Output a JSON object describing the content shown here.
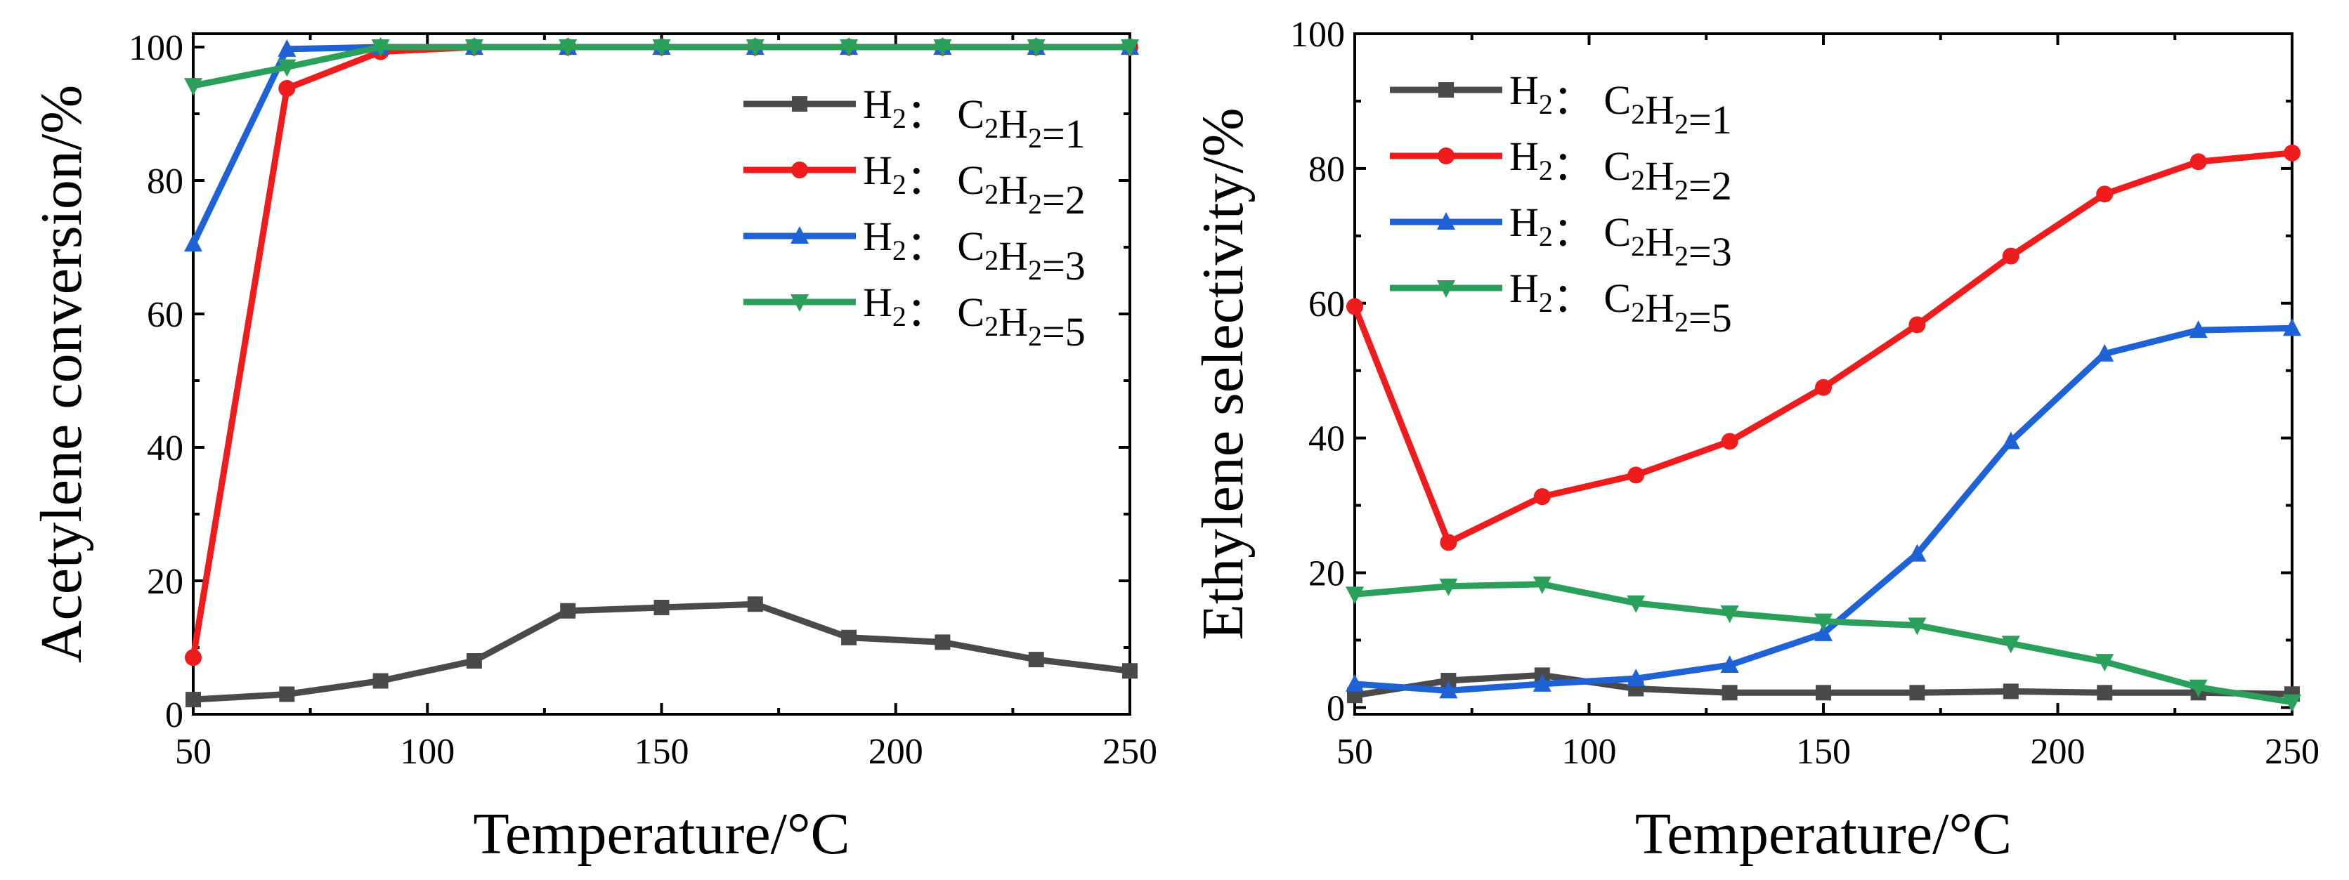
{
  "chart_data": [
    {
      "type": "line",
      "title": "",
      "xlabel": "Temperature/°C",
      "ylabel": "Acetylene conversion/%",
      "xlim": [
        50,
        250
      ],
      "ylim": [
        0,
        102
      ],
      "xticks": [
        50,
        100,
        150,
        200,
        250
      ],
      "yticks": [
        0,
        20,
        40,
        60,
        80,
        100
      ],
      "grid": false,
      "legend_position": "top-right",
      "x": [
        50,
        70,
        90,
        110,
        130,
        150,
        170,
        190,
        210,
        230,
        250
      ],
      "series": [
        {
          "name": "H2：C2H2=1",
          "label_parts": {
            "a": "H",
            "a_sub": "2",
            "sep": "：  ",
            "b": "C",
            "b_sub": "2",
            "c": "H",
            "c_sub": "2",
            "tail": "=1"
          },
          "color": "#4a4a4a",
          "marker": "square",
          "values": [
            2.2,
            3.0,
            5.0,
            8.0,
            15.5,
            16.0,
            16.5,
            11.5,
            10.8,
            8.2,
            6.5
          ]
        },
        {
          "name": "H2：C2H2=2",
          "label_parts": {
            "a": "H",
            "a_sub": "2",
            "sep": "：  ",
            "b": "C",
            "b_sub": "2",
            "c": "H",
            "c_sub": "2",
            "tail": "=2"
          },
          "color": "#ee1c1c",
          "marker": "circle",
          "values": [
            8.5,
            93.8,
            99.3,
            100,
            100,
            100,
            100,
            100,
            100,
            100,
            100
          ]
        },
        {
          "name": "H2：C2H2=3",
          "label_parts": {
            "a": "H",
            "a_sub": "2",
            "sep": "：  ",
            "b": "C",
            "b_sub": "2",
            "c": "H",
            "c_sub": "2",
            "tail": "=3"
          },
          "color": "#1f62d6",
          "marker": "triangle-up",
          "values": [
            70.5,
            99.7,
            100,
            100,
            100,
            100,
            100,
            100,
            100,
            100,
            100
          ]
        },
        {
          "name": "H2：C2H2=5",
          "label_parts": {
            "a": "H",
            "a_sub": "2",
            "sep": "：  ",
            "b": "C",
            "b_sub": "2",
            "c": "H",
            "c_sub": "2",
            "tail": "=5"
          },
          "color": "#2aa05a",
          "marker": "triangle-down",
          "values": [
            94.2,
            97.0,
            100,
            100,
            100,
            100,
            100,
            100,
            100,
            100,
            100
          ]
        }
      ]
    },
    {
      "type": "line",
      "title": "",
      "xlabel": "Temperature/°C",
      "ylabel": "Ethylene selectivity/%",
      "xlim": [
        50,
        250
      ],
      "ylim": [
        -1,
        100
      ],
      "xticks": [
        50,
        100,
        150,
        200,
        250
      ],
      "yticks": [
        0,
        20,
        40,
        60,
        80,
        100
      ],
      "grid": false,
      "legend_position": "top-left",
      "x": [
        50,
        70,
        90,
        110,
        130,
        150,
        170,
        190,
        210,
        230,
        250
      ],
      "series": [
        {
          "name": "H2：C2H2=1",
          "label_parts": {
            "a": "H",
            "a_sub": "2",
            "sep": "：  ",
            "b": "C",
            "b_sub": "2",
            "c": "H",
            "c_sub": "2",
            "tail": "=1"
          },
          "color": "#4a4a4a",
          "marker": "square",
          "values": [
            1.8,
            4.0,
            4.8,
            2.8,
            2.2,
            2.2,
            2.2,
            2.4,
            2.2,
            2.2,
            2.0
          ]
        },
        {
          "name": "H2：C2H2=2",
          "label_parts": {
            "a": "H",
            "a_sub": "2",
            "sep": "：  ",
            "b": "C",
            "b_sub": "2",
            "c": "H",
            "c_sub": "2",
            "tail": "=2"
          },
          "color": "#ee1c1c",
          "marker": "circle",
          "values": [
            59.5,
            24.5,
            31.3,
            34.5,
            39.5,
            47.5,
            56.8,
            67.0,
            76.2,
            81.0,
            82.3
          ]
        },
        {
          "name": "H2：C2H2=3",
          "label_parts": {
            "a": "H",
            "a_sub": "2",
            "sep": "：  ",
            "b": "C",
            "b_sub": "2",
            "c": "H",
            "c_sub": "2",
            "tail": "=3"
          },
          "color": "#1f62d6",
          "marker": "triangle-up",
          "values": [
            3.5,
            2.5,
            3.5,
            4.3,
            6.3,
            11.0,
            22.8,
            39.5,
            52.5,
            56.0,
            56.3
          ]
        },
        {
          "name": "H2：C2H2=5",
          "label_parts": {
            "a": "H",
            "a_sub": "2",
            "sep": "：  ",
            "b": "C",
            "b_sub": "2",
            "c": "H",
            "c_sub": "2",
            "tail": "=5"
          },
          "color": "#2aa05a",
          "marker": "triangle-down",
          "values": [
            16.8,
            18.0,
            18.3,
            15.5,
            14.0,
            12.8,
            12.2,
            9.5,
            6.8,
            3.0,
            0.8
          ]
        }
      ]
    }
  ]
}
